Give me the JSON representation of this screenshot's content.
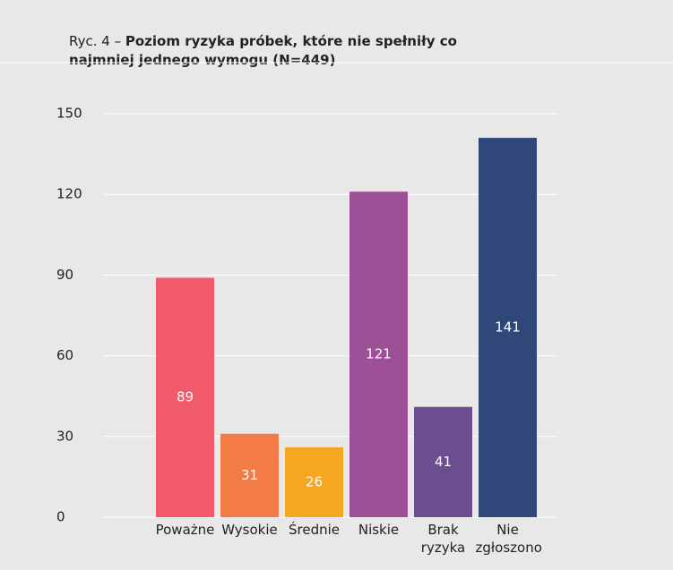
{
  "chart_data": {
    "type": "bar",
    "figure_label": "Ryc. 4 –",
    "title": "Poziom ryzyka próbek, które nie spełniły co najmniej jednego wymogu (N=449)",
    "categories": [
      "Poważne",
      "Wysokie",
      "Średnie",
      "Niskie",
      "Brak ryzyka",
      "Nie zgłoszono"
    ],
    "values": [
      89,
      31,
      26,
      121,
      41,
      141
    ],
    "colors": [
      "#f05a6a",
      "#f27b46",
      "#f6a623",
      "#9d5096",
      "#6b4e8e",
      "#2f4879"
    ],
    "ylim": [
      0,
      150
    ],
    "yticks": [
      0,
      30,
      60,
      90,
      120,
      150
    ],
    "grid": true
  }
}
